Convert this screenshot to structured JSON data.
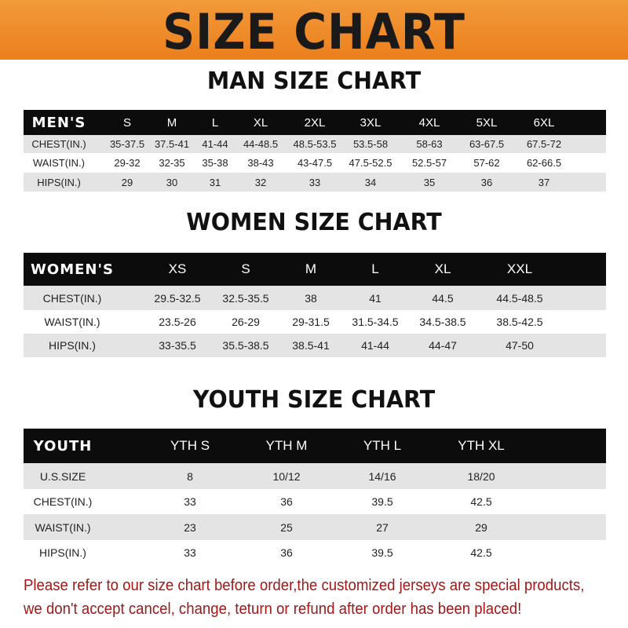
{
  "banner": {
    "title": "SIZE CHART",
    "color": "#ef8a26"
  },
  "men": {
    "title": "MAN SIZE CHART",
    "header": [
      "MEN'S",
      "S",
      "M",
      "L",
      "XL",
      "2XL",
      "3XL",
      "4XL",
      "5XL",
      "6XL"
    ],
    "rows": [
      [
        "CHEST(IN.)",
        "35-37.5",
        "37.5-41",
        "41-44",
        "44-48.5",
        "48.5-53.5",
        "53.5-58",
        "58-63",
        "63-67.5",
        "67.5-72"
      ],
      [
        "WAIST(IN.)",
        "29-32",
        "32-35",
        "35-38",
        "38-43",
        "43-47.5",
        "47.5-52.5",
        "52.5-57",
        "57-62",
        "62-66.5"
      ],
      [
        "HIPS(IN.)",
        "29",
        "30",
        "31",
        "32",
        "33",
        "34",
        "35",
        "36",
        "37"
      ]
    ]
  },
  "women": {
    "title": "WOMEN SIZE CHART",
    "header": [
      "WOMEN'S",
      "XS",
      "S",
      "M",
      "L",
      "XL",
      "XXL"
    ],
    "rows": [
      [
        "CHEST(IN.)",
        "29.5-32.5",
        "32.5-35.5",
        "38",
        "41",
        "44.5",
        "44.5-48.5"
      ],
      [
        "WAIST(IN.)",
        "23.5-26",
        "26-29",
        "29-31.5",
        "31.5-34.5",
        "34.5-38.5",
        "38.5-42.5"
      ],
      [
        "HIPS(IN.)",
        "33-35.5",
        "35.5-38.5",
        "38.5-41",
        "41-44",
        "44-47",
        "47-50"
      ]
    ]
  },
  "youth": {
    "title": "YOUTH SIZE CHART",
    "header": [
      "YOUTH",
      "YTH S",
      "YTH M",
      "YTH L",
      "YTH XL"
    ],
    "rows": [
      [
        "U.S.SIZE",
        "8",
        "10/12",
        "14/16",
        "18/20"
      ],
      [
        "CHEST(IN.)",
        "33",
        "36",
        "39.5",
        "42.5"
      ],
      [
        "WAIST(IN.)",
        "23",
        "25",
        "27",
        "29"
      ],
      [
        "HIPS(IN.)",
        "33",
        "36",
        "39.5",
        "42.5"
      ]
    ]
  },
  "notice": {
    "line1": "Please refer to our size chart before order,the customized jerseys are special products,",
    "line2": "we don't accept cancel, change, teturn or refund after order has been placed!",
    "color": "#a01818"
  }
}
